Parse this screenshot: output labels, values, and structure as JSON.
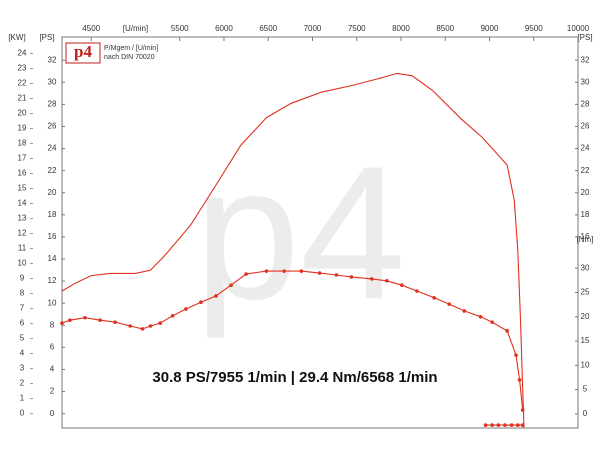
{
  "chart_data": {
    "type": "line",
    "x_label": "[U/min]",
    "y_label": "[PS]",
    "y_label_right": "[PS]",
    "y2_label": "[Nm]",
    "kw_label": "[KW]",
    "logo": "p4",
    "legend_lines": [
      "P/Mgem / [U/min]",
      "nach DIN 70020"
    ],
    "watermark": "p4",
    "annotation": "30.8 PS/7955 1/min | 29.4 Nm/6568 1/min",
    "xlim": [
      4170,
      10000
    ],
    "xticks": [
      4500,
      5500,
      6000,
      6500,
      7000,
      7500,
      8000,
      8500,
      9000,
      9500,
      10000
    ],
    "ylim": [
      -1.3,
      34.1
    ],
    "yticks": [
      0,
      2,
      4,
      6,
      8,
      10,
      12,
      14,
      16,
      18,
      20,
      22,
      24,
      26,
      28,
      30,
      32
    ],
    "y2lim": [
      -2.9,
      77.6
    ],
    "y2ticks": [
      0,
      5,
      10,
      15,
      20,
      25,
      30
    ],
    "kw_lim": [
      -0.96,
      25.1
    ],
    "kw_ticks": [
      0,
      1,
      2,
      3,
      4,
      5,
      6,
      7,
      8,
      9,
      10,
      11,
      12,
      13,
      14,
      15,
      16,
      17,
      18,
      19,
      20,
      21,
      22,
      23,
      24
    ],
    "series": [
      {
        "color": "#e0301e",
        "markers": false,
        "x": [
          4170,
          4318,
          4500,
          4716,
          5000,
          5170,
          5340,
          5625,
          5910,
          6190,
          6480,
          6760,
          7100,
          7440,
          7730,
          7955,
          8125,
          8350,
          8690,
          8920,
          9200,
          9280,
          9320,
          9350,
          9375,
          9390
        ],
        "values": [
          11.1,
          11.8,
          12.5,
          12.7,
          12.7,
          13.0,
          14.4,
          17.1,
          20.7,
          24.3,
          26.8,
          28.1,
          29.1,
          29.7,
          30.3,
          30.8,
          30.6,
          29.3,
          26.6,
          25.0,
          22.5,
          19.3,
          14.8,
          8.5,
          2.2,
          -1.3
        ]
      },
      {
        "color": "#e0301e",
        "markers": true,
        "axis": "y2",
        "x": [
          4170,
          4260,
          4430,
          4600,
          4770,
          4940,
          5080,
          5170,
          5280,
          5420,
          5570,
          5740,
          5910,
          6080,
          6250,
          6480,
          6680,
          6875,
          7080,
          7270,
          7440,
          7670,
          7840,
          8010,
          8180,
          8375,
          8545,
          8715,
          8900,
          9030,
          9200,
          9300,
          9340,
          9375,
          9375,
          8955,
          9030,
          9100,
          9175,
          9250,
          9320,
          9375
        ],
        "values": [
          18.7,
          19.3,
          19.8,
          19.3,
          18.9,
          18.1,
          17.5,
          18.1,
          18.7,
          20.2,
          21.6,
          23.0,
          24.3,
          26.5,
          28.8,
          29.4,
          29.4,
          29.4,
          29.0,
          28.6,
          28.2,
          27.8,
          27.4,
          26.5,
          25.3,
          23.9,
          22.6,
          21.2,
          20.0,
          18.9,
          17.1,
          12.1,
          7.0,
          0.8,
          null,
          -2.3,
          -2.3,
          -2.3,
          -2.3,
          -2.3,
          -2.3,
          -2.3
        ]
      }
    ]
  }
}
